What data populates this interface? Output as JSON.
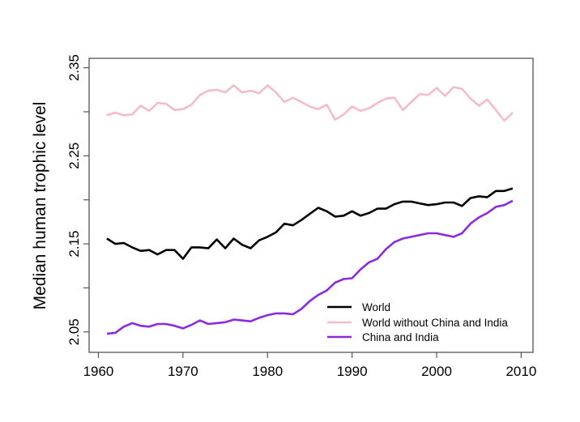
{
  "chart_data": {
    "type": "line",
    "title": "",
    "xlabel": "",
    "ylabel": "Median human trophic level",
    "xlim": [
      1958.9,
      2011.4
    ],
    "ylim": [
      2.0268,
      2.3607
    ],
    "x_ticks": [
      "1960",
      "1970",
      "1980",
      "1990",
      "2000",
      "2010"
    ],
    "y_ticks": [
      "2.05",
      "2.10",
      "2.15",
      "2.20",
      "2.25",
      "2.30",
      "2.35"
    ],
    "y_tick_labels_shown": [
      "2.05",
      "2.15",
      "2.25",
      "2.35"
    ],
    "grid": false,
    "legend_position": "bottom-right",
    "x": [
      1961,
      1962,
      1963,
      1964,
      1965,
      1966,
      1967,
      1968,
      1969,
      1970,
      1971,
      1972,
      1973,
      1974,
      1975,
      1976,
      1977,
      1978,
      1979,
      1980,
      1981,
      1982,
      1983,
      1984,
      1985,
      1986,
      1987,
      1988,
      1989,
      1990,
      1991,
      1992,
      1993,
      1994,
      1995,
      1996,
      1997,
      1998,
      1999,
      2000,
      2001,
      2002,
      2003,
      2004,
      2005,
      2006,
      2007,
      2008,
      2009
    ],
    "series": [
      {
        "name": "World",
        "color": "#000000",
        "values": [
          2.156,
          2.15,
          2.151,
          2.146,
          2.142,
          2.143,
          2.138,
          2.143,
          2.143,
          2.133,
          2.146,
          2.146,
          2.145,
          2.155,
          2.145,
          2.156,
          2.149,
          2.145,
          2.154,
          2.158,
          2.163,
          2.173,
          2.171,
          2.177,
          2.184,
          2.191,
          2.187,
          2.181,
          2.182,
          2.187,
          2.182,
          2.185,
          2.19,
          2.19,
          2.195,
          2.198,
          2.198,
          2.196,
          2.194,
          2.195,
          2.197,
          2.197,
          2.193,
          2.202,
          2.204,
          2.203,
          2.21,
          2.21,
          2.213
        ]
      },
      {
        "name": "World without China and India",
        "color": "#f4bcc8",
        "values": [
          2.296,
          2.299,
          2.296,
          2.297,
          2.307,
          2.301,
          2.31,
          2.309,
          2.302,
          2.303,
          2.308,
          2.319,
          2.324,
          2.325,
          2.322,
          2.33,
          2.322,
          2.324,
          2.321,
          2.33,
          2.322,
          2.311,
          2.316,
          2.311,
          2.306,
          2.303,
          2.308,
          2.291,
          2.297,
          2.306,
          2.301,
          2.304,
          2.31,
          2.315,
          2.316,
          2.302,
          2.311,
          2.32,
          2.319,
          2.327,
          2.318,
          2.328,
          2.326,
          2.315,
          2.307,
          2.314,
          2.302,
          2.29,
          2.299
        ]
      },
      {
        "name": "China and India",
        "color": "#8a2be2",
        "values": [
          2.048,
          2.049,
          2.056,
          2.06,
          2.057,
          2.056,
          2.059,
          2.059,
          2.057,
          2.054,
          2.058,
          2.063,
          2.059,
          2.06,
          2.061,
          2.064,
          2.063,
          2.062,
          2.066,
          2.069,
          2.071,
          2.071,
          2.07,
          2.076,
          2.085,
          2.092,
          2.097,
          2.106,
          2.11,
          2.111,
          2.121,
          2.129,
          2.133,
          2.144,
          2.152,
          2.156,
          2.158,
          2.16,
          2.162,
          2.162,
          2.16,
          2.158,
          2.162,
          2.173,
          2.18,
          2.185,
          2.192,
          2.194,
          2.199
        ]
      }
    ]
  }
}
